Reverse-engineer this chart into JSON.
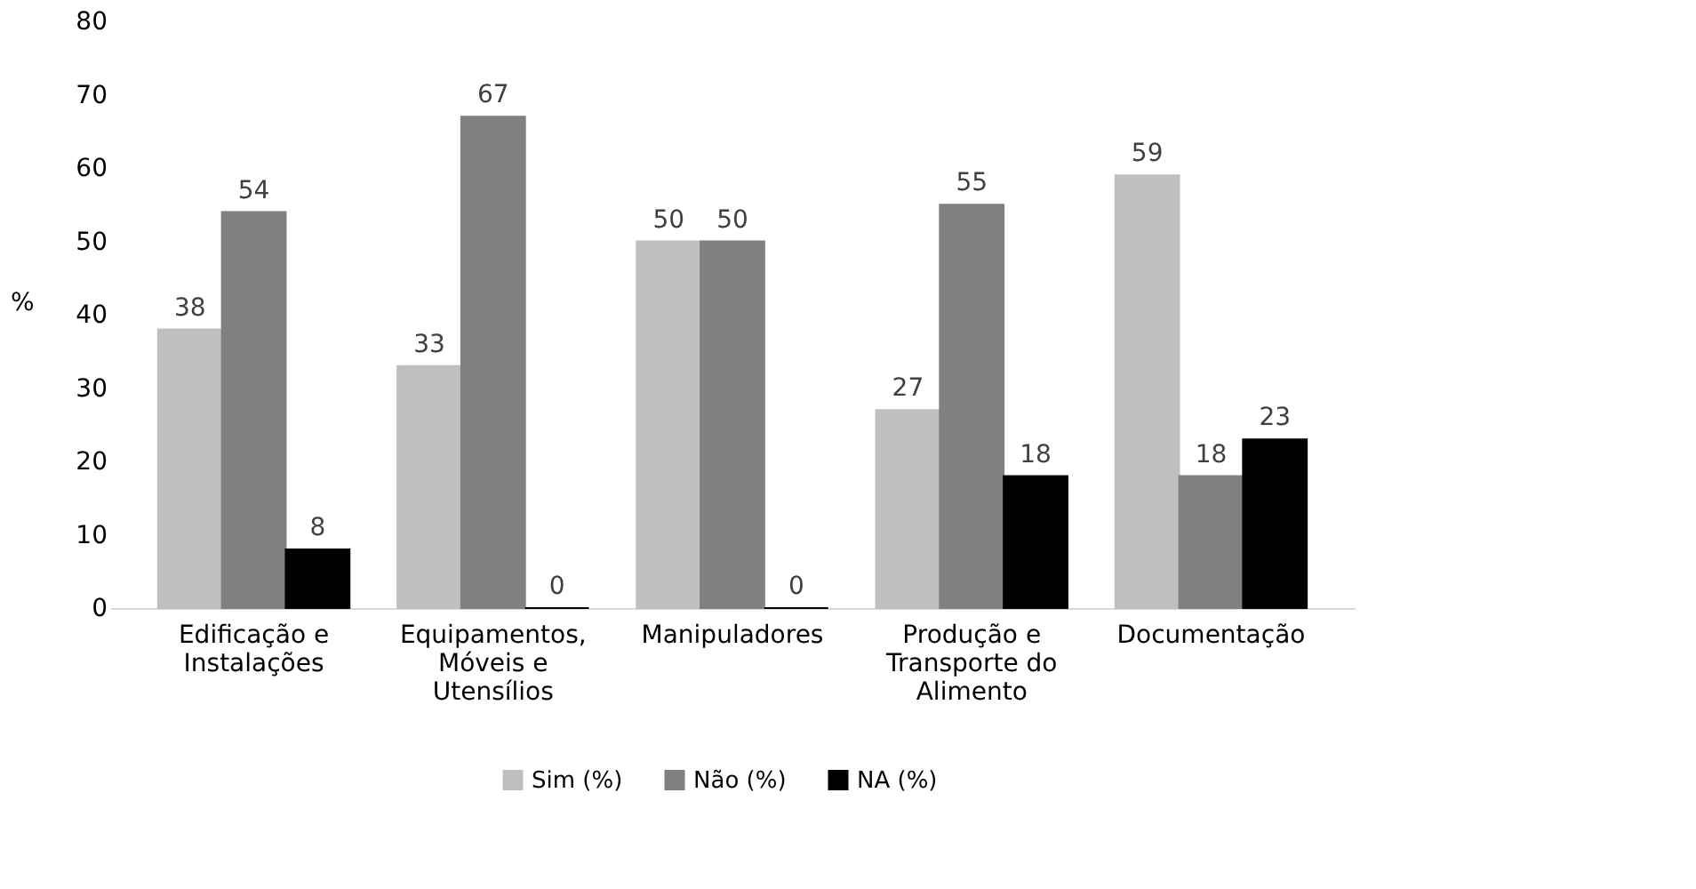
{
  "chart_data": {
    "type": "bar",
    "ylabel": "%",
    "categories": [
      "Edificação e Instalações",
      "Equipamentos, Móveis e Utensílios",
      "Manipuladores",
      "Produção e Transporte do Alimento",
      "Documentação"
    ],
    "series": [
      {
        "name": "Sim (%)",
        "color": "#bfbfbf",
        "values": [
          38,
          33,
          50,
          27,
          59
        ]
      },
      {
        "name": "Não (%)",
        "color": "#808080",
        "values": [
          54,
          67,
          50,
          55,
          18
        ]
      },
      {
        "name": "NA (%)",
        "color": "#000000",
        "values": [
          8,
          0,
          0,
          18,
          23
        ]
      }
    ],
    "ylim": [
      0,
      80
    ],
    "yticks": [
      0,
      10,
      20,
      30,
      40,
      50,
      60,
      70,
      80
    ],
    "grid": false,
    "legend": "bottom",
    "data_labels": true
  }
}
